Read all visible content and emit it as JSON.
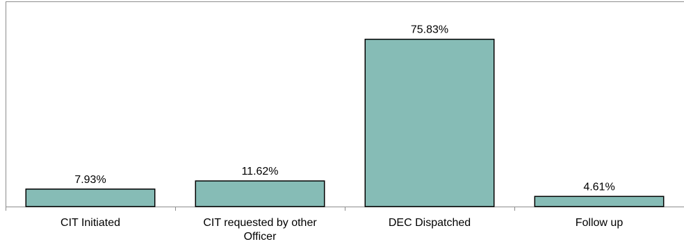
{
  "chart_data": {
    "type": "bar",
    "categories": [
      [
        "CIT Initiated"
      ],
      [
        "CIT requested by other",
        "Officer"
      ],
      [
        "DEC Dispatched"
      ],
      [
        "Follow up"
      ]
    ],
    "values": [
      7.93,
      11.62,
      75.83,
      4.61
    ],
    "value_labels": [
      "7.93%",
      "11.62%",
      "75.83%",
      "4.61%"
    ],
    "unit": "%",
    "ylim": [
      0,
      93
    ],
    "grid": false,
    "legend": "none",
    "bar_color": "#86bcb6",
    "bar_edge_color": "#000000"
  }
}
